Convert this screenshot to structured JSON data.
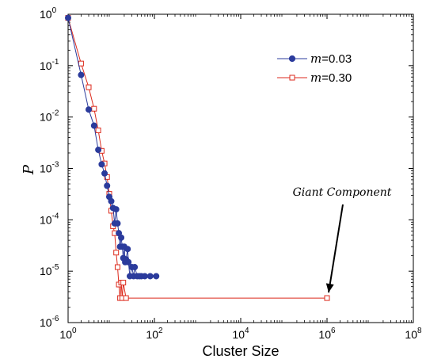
{
  "chart_data": {
    "type": "scatter",
    "title": "",
    "xlabel": "Cluster Size",
    "ylabel": "P",
    "xscale": "log",
    "yscale": "log",
    "xlim": [
      1,
      100000000
    ],
    "ylim": [
      1e-06,
      1
    ],
    "grid": false,
    "legend_position": "top-right",
    "x_ticks": [
      {
        "base": "10",
        "exp": "0"
      },
      {
        "base": "10",
        "exp": "2"
      },
      {
        "base": "10",
        "exp": "4"
      },
      {
        "base": "10",
        "exp": "6"
      },
      {
        "base": "10",
        "exp": "8"
      }
    ],
    "y_ticks": [
      {
        "base": "10",
        "exp": "0"
      },
      {
        "base": "10",
        "exp": "-1"
      },
      {
        "base": "10",
        "exp": "-2"
      },
      {
        "base": "10",
        "exp": "-3"
      },
      {
        "base": "10",
        "exp": "-4"
      },
      {
        "base": "10",
        "exp": "-5"
      },
      {
        "base": "10",
        "exp": "-6"
      }
    ],
    "series": [
      {
        "name_prefix": "m",
        "name_suffix": "=0.03",
        "color": "#2b3b9c",
        "marker": "filled-circle",
        "points": [
          [
            1,
            0.85
          ],
          [
            2,
            0.066
          ],
          [
            3,
            0.014
          ],
          [
            4,
            0.0068
          ],
          [
            5,
            0.0023
          ],
          [
            6,
            0.0012
          ],
          [
            7,
            0.0008
          ],
          [
            8,
            0.00046
          ],
          [
            9,
            0.00028
          ],
          [
            10,
            0.00023
          ],
          [
            11,
            0.00017
          ],
          [
            12,
            8.5e-05
          ],
          [
            13,
            0.00016
          ],
          [
            14,
            8.5e-05
          ],
          [
            15,
            5.5e-05
          ],
          [
            16,
            3e-05
          ],
          [
            17,
            4.5e-05
          ],
          [
            18,
            3e-05
          ],
          [
            19,
            1.8e-05
          ],
          [
            20,
            3e-05
          ],
          [
            21,
            1.5e-05
          ],
          [
            22,
            1.7e-05
          ],
          [
            24,
            2.7e-05
          ],
          [
            25,
            1.5e-05
          ],
          [
            27,
            8e-06
          ],
          [
            30,
            1.2e-05
          ],
          [
            33,
            8e-06
          ],
          [
            35,
            1.2e-05
          ],
          [
            40,
            8e-06
          ],
          [
            45,
            8e-06
          ],
          [
            50,
            8e-06
          ],
          [
            60,
            8e-06
          ],
          [
            80,
            8e-06
          ],
          [
            110,
            8e-06
          ]
        ]
      },
      {
        "name_prefix": "m",
        "name_suffix": "=0.30",
        "color": "#dc2a1c",
        "marker": "open-square",
        "points": [
          [
            1,
            0.85
          ],
          [
            2,
            0.11
          ],
          [
            3,
            0.038
          ],
          [
            4,
            0.0145
          ],
          [
            5,
            0.0055
          ],
          [
            6,
            0.0022
          ],
          [
            7,
            0.00125
          ],
          [
            8,
            0.00068
          ],
          [
            9,
            0.00032
          ],
          [
            10,
            0.00015
          ],
          [
            11,
            7.5e-05
          ],
          [
            12,
            5.5e-05
          ],
          [
            13,
            2.3e-05
          ],
          [
            14,
            1.2e-05
          ],
          [
            15,
            5.5e-06
          ],
          [
            16,
            3e-06
          ],
          [
            17,
            6e-06
          ],
          [
            18,
            3e-06
          ],
          [
            19,
            6e-06
          ],
          [
            22,
            3e-06
          ],
          [
            1000000,
            3e-06
          ]
        ]
      }
    ],
    "annotation": {
      "text": "Giant Component",
      "target": [
        1000000,
        3e-06
      ]
    }
  }
}
